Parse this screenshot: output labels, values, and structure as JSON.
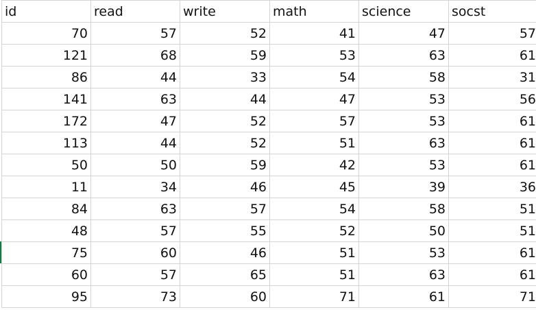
{
  "sheet": {
    "columns": [
      "id",
      "read",
      "write",
      "math",
      "science",
      "socst"
    ],
    "rows": [
      [
        "70",
        "57",
        "52",
        "41",
        "47",
        "57"
      ],
      [
        "121",
        "68",
        "59",
        "53",
        "63",
        "61"
      ],
      [
        "86",
        "44",
        "33",
        "54",
        "58",
        "31"
      ],
      [
        "141",
        "63",
        "44",
        "47",
        "53",
        "56"
      ],
      [
        "172",
        "47",
        "52",
        "57",
        "53",
        "61"
      ],
      [
        "113",
        "44",
        "52",
        "51",
        "63",
        "61"
      ],
      [
        "50",
        "50",
        "59",
        "42",
        "53",
        "61"
      ],
      [
        "11",
        "34",
        "46",
        "45",
        "39",
        "36"
      ],
      [
        "84",
        "63",
        "57",
        "54",
        "58",
        "51"
      ],
      [
        "48",
        "57",
        "55",
        "52",
        "50",
        "51"
      ],
      [
        "75",
        "60",
        "46",
        "51",
        "53",
        "61"
      ],
      [
        "60",
        "57",
        "65",
        "51",
        "63",
        "61"
      ],
      [
        "95",
        "73",
        "60",
        "71",
        "61",
        "71"
      ]
    ]
  },
  "colors": {
    "gridline": "#d4d4d4",
    "text": "#111111",
    "selection_accent": "#217346"
  }
}
